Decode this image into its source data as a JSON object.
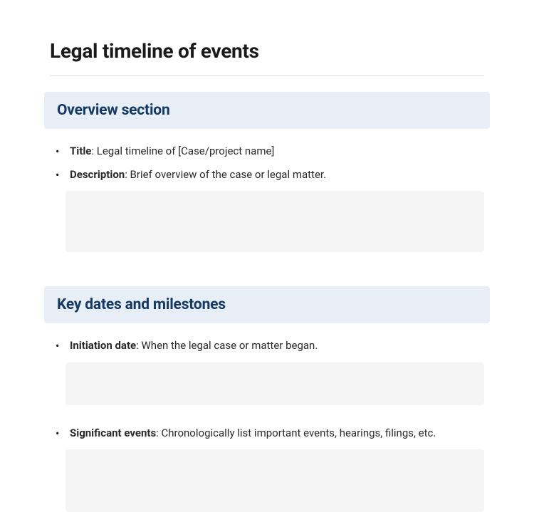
{
  "page_title": "Legal timeline of events",
  "sections": [
    {
      "heading": "Overview section",
      "items": [
        {
          "label": "Title",
          "text": ": Legal timeline of [Case/project name]"
        },
        {
          "label": "Description",
          "text": ": Brief overview of the case or legal matter."
        }
      ]
    },
    {
      "heading": "Key dates and milestones",
      "items": [
        {
          "label": "Initiation date",
          "text": ": When the legal case or matter began."
        },
        {
          "label": "Significant events",
          "text": ": Chronologically list important events, hearings, filings, etc."
        }
      ]
    }
  ],
  "colors": {
    "section_bg": "#e8eef6",
    "section_text": "#143962",
    "input_bg": "#f5f5f5",
    "text": "#2a2a2a",
    "divider": "#dcdcdc"
  }
}
